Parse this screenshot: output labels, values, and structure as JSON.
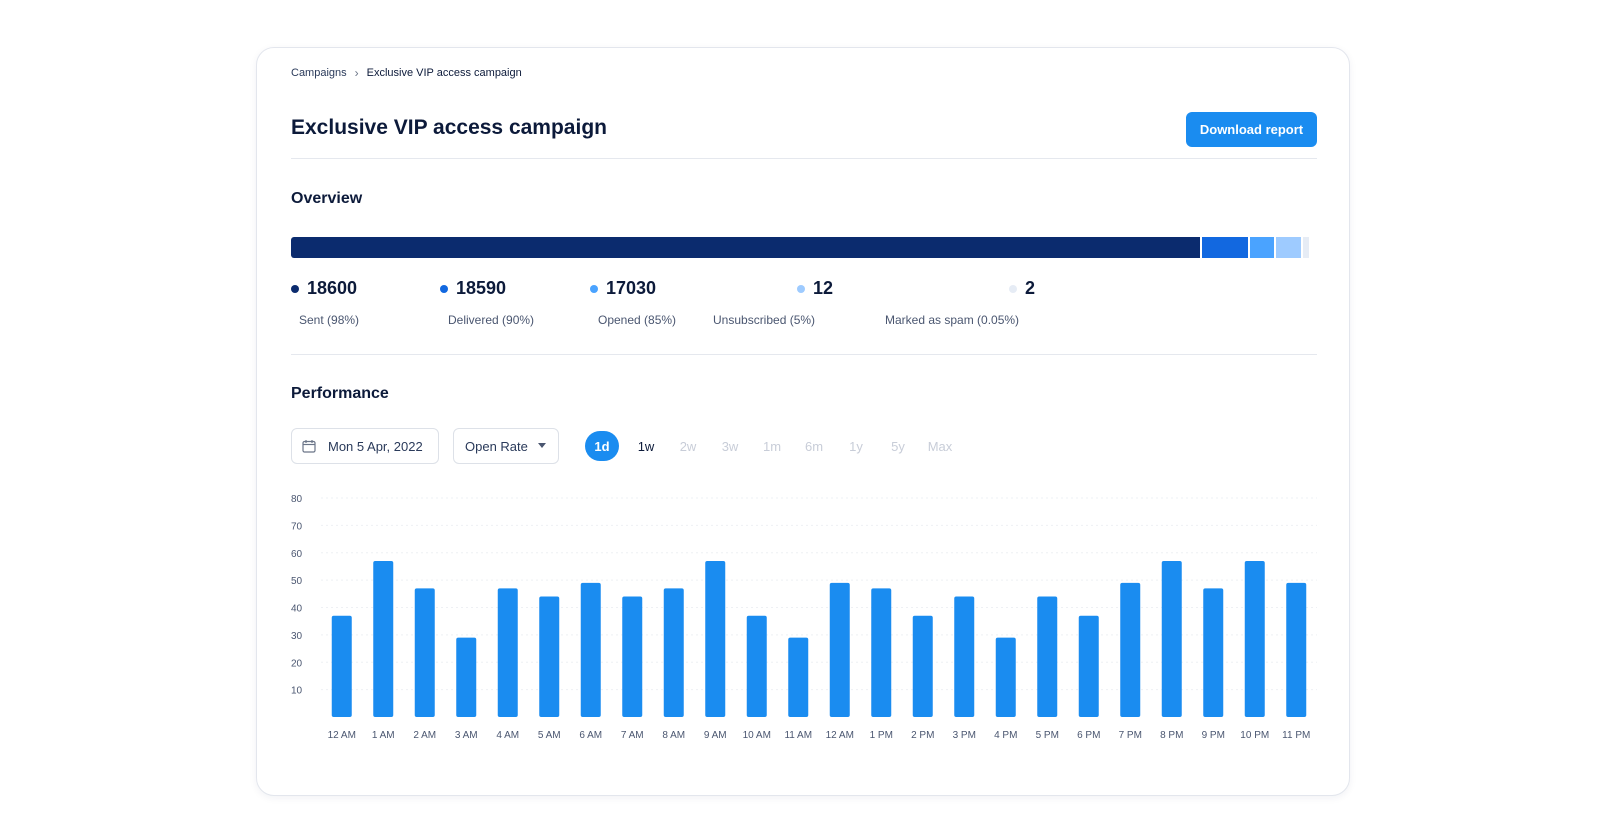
{
  "breadcrumb": {
    "parent": "Campaigns",
    "separator": "›",
    "current": "Exclusive VIP access campaign"
  },
  "page": {
    "title": "Exclusive VIP access campaign",
    "download_label": "Download report"
  },
  "overview": {
    "title": "Overview",
    "segments": [
      {
        "key": "sent",
        "fraction": 0.893,
        "color": "#0b2b6e"
      },
      {
        "key": "delivered",
        "fraction": 0.045,
        "color": "#1268e0"
      },
      {
        "key": "opened",
        "fraction": 0.024,
        "color": "#4aa3ff"
      },
      {
        "key": "unsubscribed",
        "fraction": 0.024,
        "color": "#9ecbff"
      },
      {
        "key": "spam",
        "fraction": 0.006,
        "color": "#e6ecf5"
      }
    ],
    "stats": [
      {
        "value": "18600",
        "label": "Sent (98%)",
        "color": "#0b2b6e"
      },
      {
        "value": "18590",
        "label": "Delivered (90%)",
        "color": "#1268e0"
      },
      {
        "value": "17030",
        "label": "Opened (85%)",
        "color": "#4aa3ff"
      },
      {
        "value": "12",
        "label": "Unsubscribed (5%)",
        "color": "#9ecbff"
      },
      {
        "value": "2",
        "label": "Marked as spam (0.05%)",
        "color": "#e6ecf5"
      }
    ]
  },
  "performance": {
    "title": "Performance",
    "date": "Mon 5 Apr, 2022",
    "metric": "Open Rate",
    "ranges": [
      "1d",
      "1w",
      "2w",
      "3w",
      "1m",
      "6m",
      "1y",
      "5y",
      "Max"
    ],
    "active_range": "1d"
  },
  "chart_data": {
    "type": "bar",
    "categories": [
      "12 AM",
      "1 AM",
      "2 AM",
      "3 AM",
      "4 AM",
      "5 AM",
      "6 AM",
      "7 AM",
      "8 AM",
      "9 AM",
      "10 AM",
      "11 AM",
      "12 AM",
      "1 PM",
      "2 PM",
      "3 PM",
      "4 PM",
      "5 PM",
      "6 PM",
      "7 PM",
      "8 PM",
      "9 PM",
      "10 PM",
      "11 PM"
    ],
    "values": [
      37,
      57,
      47,
      29,
      47,
      44,
      49,
      44,
      47,
      57,
      37,
      29,
      49,
      47,
      37,
      44,
      29,
      44,
      37,
      49,
      57,
      47,
      57,
      49
    ],
    "yticks": [
      10,
      20,
      30,
      40,
      50,
      60,
      70,
      80
    ],
    "ylim": [
      0,
      80
    ],
    "grid": true,
    "bar_color": "#1a8cf0",
    "title": "",
    "xlabel": "",
    "ylabel": ""
  }
}
